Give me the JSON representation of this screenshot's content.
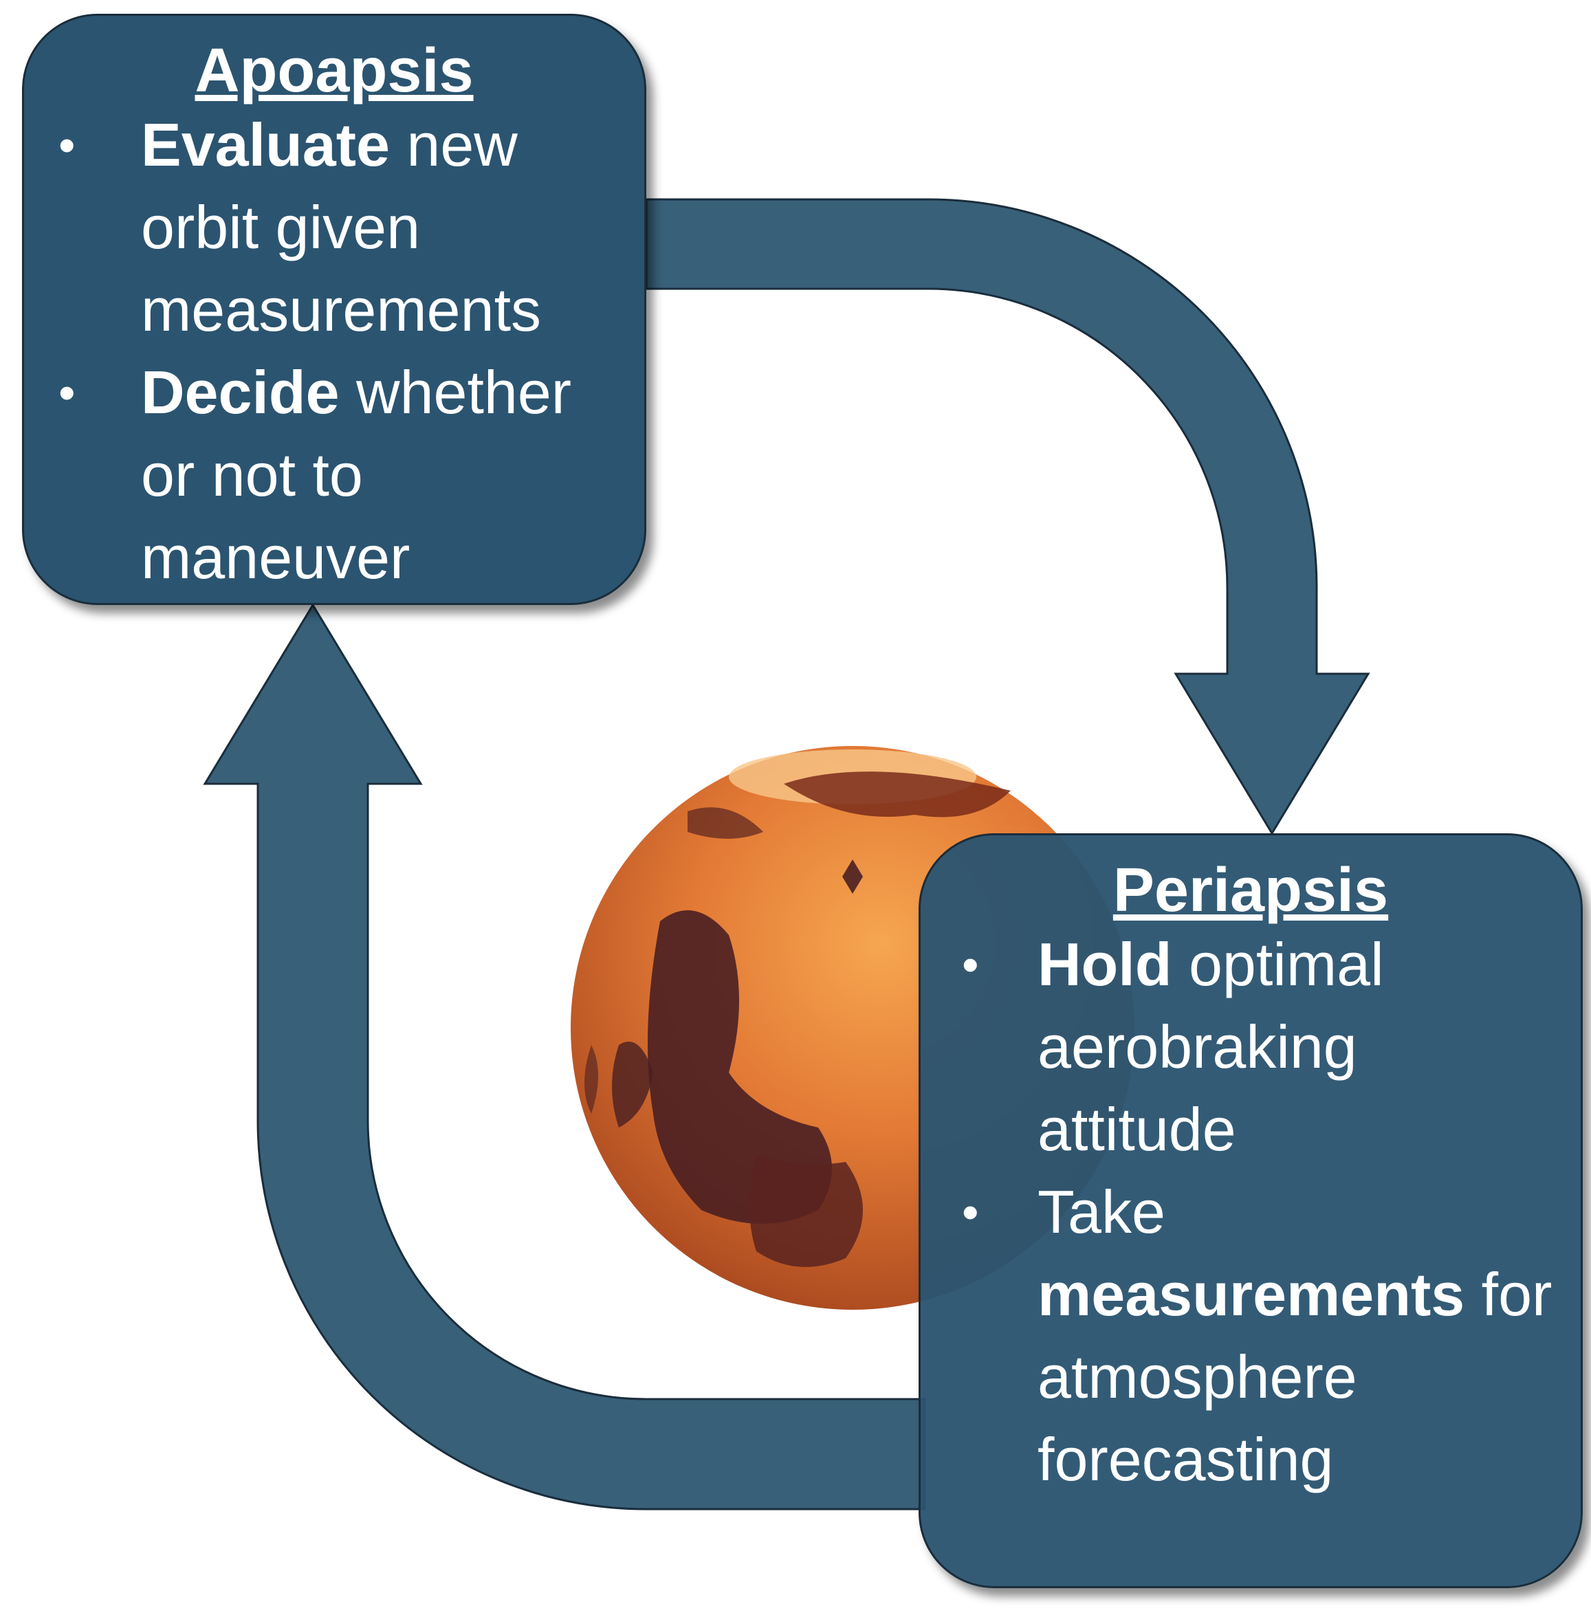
{
  "apoapsis": {
    "title": "Apoapsis",
    "bullets": [
      {
        "bold": "Evaluate",
        "pre": "",
        "rest": " new orbit given measurements"
      },
      {
        "bold": "Decide",
        "pre": "",
        "rest": " whether or not to maneuver"
      }
    ]
  },
  "periapsis": {
    "title": "Periapsis",
    "bullets": [
      {
        "bold": "Hold",
        "pre": "",
        "rest": " optimal aerobraking attitude"
      },
      {
        "bold": "measurements",
        "pre": "Take ",
        "rest": " for atmosphere forecasting"
      }
    ]
  },
  "colors": {
    "box_fill": "#2b5470",
    "arrow_fill": "#386079",
    "outline": "#1a2d3c",
    "text": "#ffffff",
    "planet": "#e8743a"
  },
  "icons": {
    "planet": "mars-planet-icon"
  }
}
